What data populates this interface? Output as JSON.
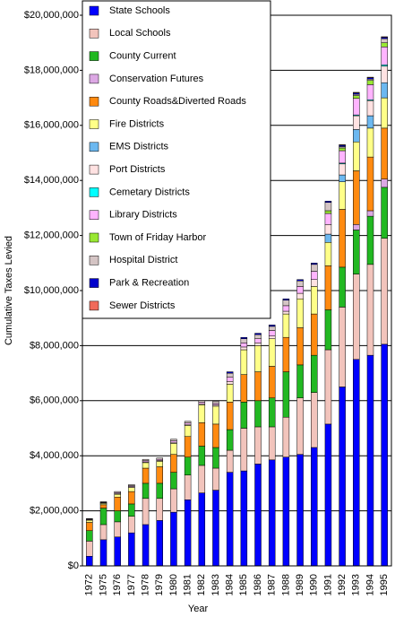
{
  "chart_data": {
    "type": "stacked_bar",
    "x_label": "Year",
    "y_label": "Cumulative Taxes Levied",
    "categories": [
      "1972",
      "1975",
      "1976",
      "1977",
      "1978",
      "1979",
      "1980",
      "1981",
      "1982",
      "1983",
      "1984",
      "1985",
      "1986",
      "1987",
      "1988",
      "1989",
      "1990",
      "1991",
      "1992",
      "1993",
      "1994",
      "1995"
    ],
    "ylim": [
      0,
      20000000
    ],
    "yticks": [
      {
        "value": 0,
        "label": "$0"
      },
      {
        "value": 2000000,
        "label": "$2,000,000"
      },
      {
        "value": 4000000,
        "label": "$4,000,000"
      },
      {
        "value": 6000000,
        "label": "$6,000,000"
      },
      {
        "value": 8000000,
        "label": "$8,000,000"
      },
      {
        "value": 10000000,
        "label": "$10,000,000"
      },
      {
        "value": 12000000,
        "label": "$12,000,000"
      },
      {
        "value": 14000000,
        "label": "$14,000,000"
      },
      {
        "value": 16000000,
        "label": "$16,000,000"
      },
      {
        "value": 18000000,
        "label": "$18,000,000"
      },
      {
        "value": 20000000,
        "label": "$20,000,000"
      }
    ],
    "grid": true,
    "legend": "top-left",
    "series": [
      {
        "name": "State Schools",
        "color": "#0000ff",
        "values": [
          350000,
          950000,
          1050000,
          1200000,
          1500000,
          1650000,
          1950000,
          2400000,
          2650000,
          2750000,
          3400000,
          3450000,
          3700000,
          3850000,
          3950000,
          4050000,
          4300000,
          5150000,
          6500000,
          7500000,
          7650000,
          8050000
        ]
      },
      {
        "name": "Local Schools",
        "color": "#f2c4bc",
        "values": [
          550000,
          550000,
          550000,
          600000,
          950000,
          800000,
          850000,
          900000,
          1000000,
          800000,
          800000,
          1550000,
          1350000,
          1200000,
          1450000,
          2050000,
          2000000,
          2700000,
          2900000,
          3100000,
          3300000,
          3850000
        ]
      },
      {
        "name": "County Current",
        "color": "#22b822",
        "values": [
          380000,
          600000,
          400000,
          450000,
          550000,
          550000,
          600000,
          650000,
          700000,
          750000,
          750000,
          950000,
          950000,
          1050000,
          1650000,
          1200000,
          1350000,
          1450000,
          1450000,
          1600000,
          1750000,
          1850000
        ]
      },
      {
        "name": "Conservation Futures",
        "color": "#dca8e4",
        "values": [
          0,
          0,
          0,
          0,
          0,
          0,
          0,
          0,
          0,
          0,
          0,
          0,
          0,
          0,
          0,
          0,
          0,
          0,
          0,
          200000,
          200000,
          300000
        ]
      },
      {
        "name": "County Roads&Diverted Roads",
        "color": "#ff8a10",
        "values": [
          300000,
          120000,
          500000,
          450000,
          550000,
          600000,
          650000,
          750000,
          850000,
          850000,
          1000000,
          1000000,
          1050000,
          1150000,
          1250000,
          1350000,
          1500000,
          1600000,
          2100000,
          1950000,
          1950000,
          1850000
        ]
      },
      {
        "name": "Fire Districts",
        "color": "#ffff88",
        "values": [
          80000,
          50000,
          100000,
          150000,
          200000,
          200000,
          400000,
          400000,
          650000,
          650000,
          650000,
          900000,
          950000,
          1000000,
          850000,
          1050000,
          1000000,
          850000,
          1000000,
          1050000,
          1050000,
          1100000
        ]
      },
      {
        "name": "EMS Districts",
        "color": "#6cb8f0",
        "values": [
          0,
          0,
          0,
          0,
          0,
          0,
          0,
          0,
          0,
          0,
          0,
          0,
          0,
          0,
          0,
          0,
          0,
          300000,
          250000,
          450000,
          450000,
          550000
        ]
      },
      {
        "name": "Port Districts",
        "color": "#ffe2e2",
        "values": [
          20000,
          20000,
          30000,
          30000,
          30000,
          30000,
          40000,
          40000,
          40000,
          50000,
          100000,
          100000,
          100000,
          100000,
          100000,
          200000,
          250000,
          350000,
          400000,
          500000,
          550000,
          600000
        ]
      },
      {
        "name": "Cemetary Districts",
        "color": "#00ffff",
        "values": [
          0,
          0,
          0,
          0,
          0,
          0,
          0,
          0,
          0,
          0,
          0,
          0,
          0,
          0,
          0,
          0,
          0,
          0,
          30000,
          30000,
          30000,
          50000
        ]
      },
      {
        "name": "Library Districts",
        "color": "#ffb4ff",
        "values": [
          20000,
          20000,
          30000,
          30000,
          40000,
          40000,
          50000,
          50000,
          50000,
          50000,
          150000,
          150000,
          150000,
          200000,
          200000,
          250000,
          300000,
          400000,
          450000,
          600000,
          550000,
          650000
        ]
      },
      {
        "name": "Town of Friday Harbor",
        "color": "#99e833",
        "values": [
          0,
          0,
          0,
          0,
          0,
          0,
          0,
          0,
          0,
          0,
          0,
          0,
          0,
          0,
          0,
          0,
          0,
          100000,
          100000,
          100000,
          150000,
          150000
        ]
      },
      {
        "name": "Hospital District",
        "color": "#d4c4c4",
        "values": [
          20000,
          20000,
          40000,
          40000,
          50000,
          50000,
          60000,
          60000,
          60000,
          80000,
          150000,
          150000,
          150000,
          150000,
          200000,
          200000,
          250000,
          300000,
          50000,
          50000,
          50000,
          150000
        ]
      },
      {
        "name": "Park & Recreation",
        "color": "#0000cc",
        "values": [
          0,
          0,
          0,
          0,
          0,
          0,
          0,
          0,
          0,
          0,
          50000,
          50000,
          50000,
          50000,
          50000,
          50000,
          50000,
          50000,
          50000,
          50000,
          50000,
          50000
        ]
      },
      {
        "name": "Sewer Districts",
        "color": "#f06a5a",
        "values": [
          0,
          0,
          0,
          0,
          0,
          0,
          0,
          0,
          0,
          0,
          0,
          0,
          0,
          0,
          0,
          0,
          0,
          0,
          20000,
          20000,
          20000,
          20000
        ]
      }
    ]
  }
}
